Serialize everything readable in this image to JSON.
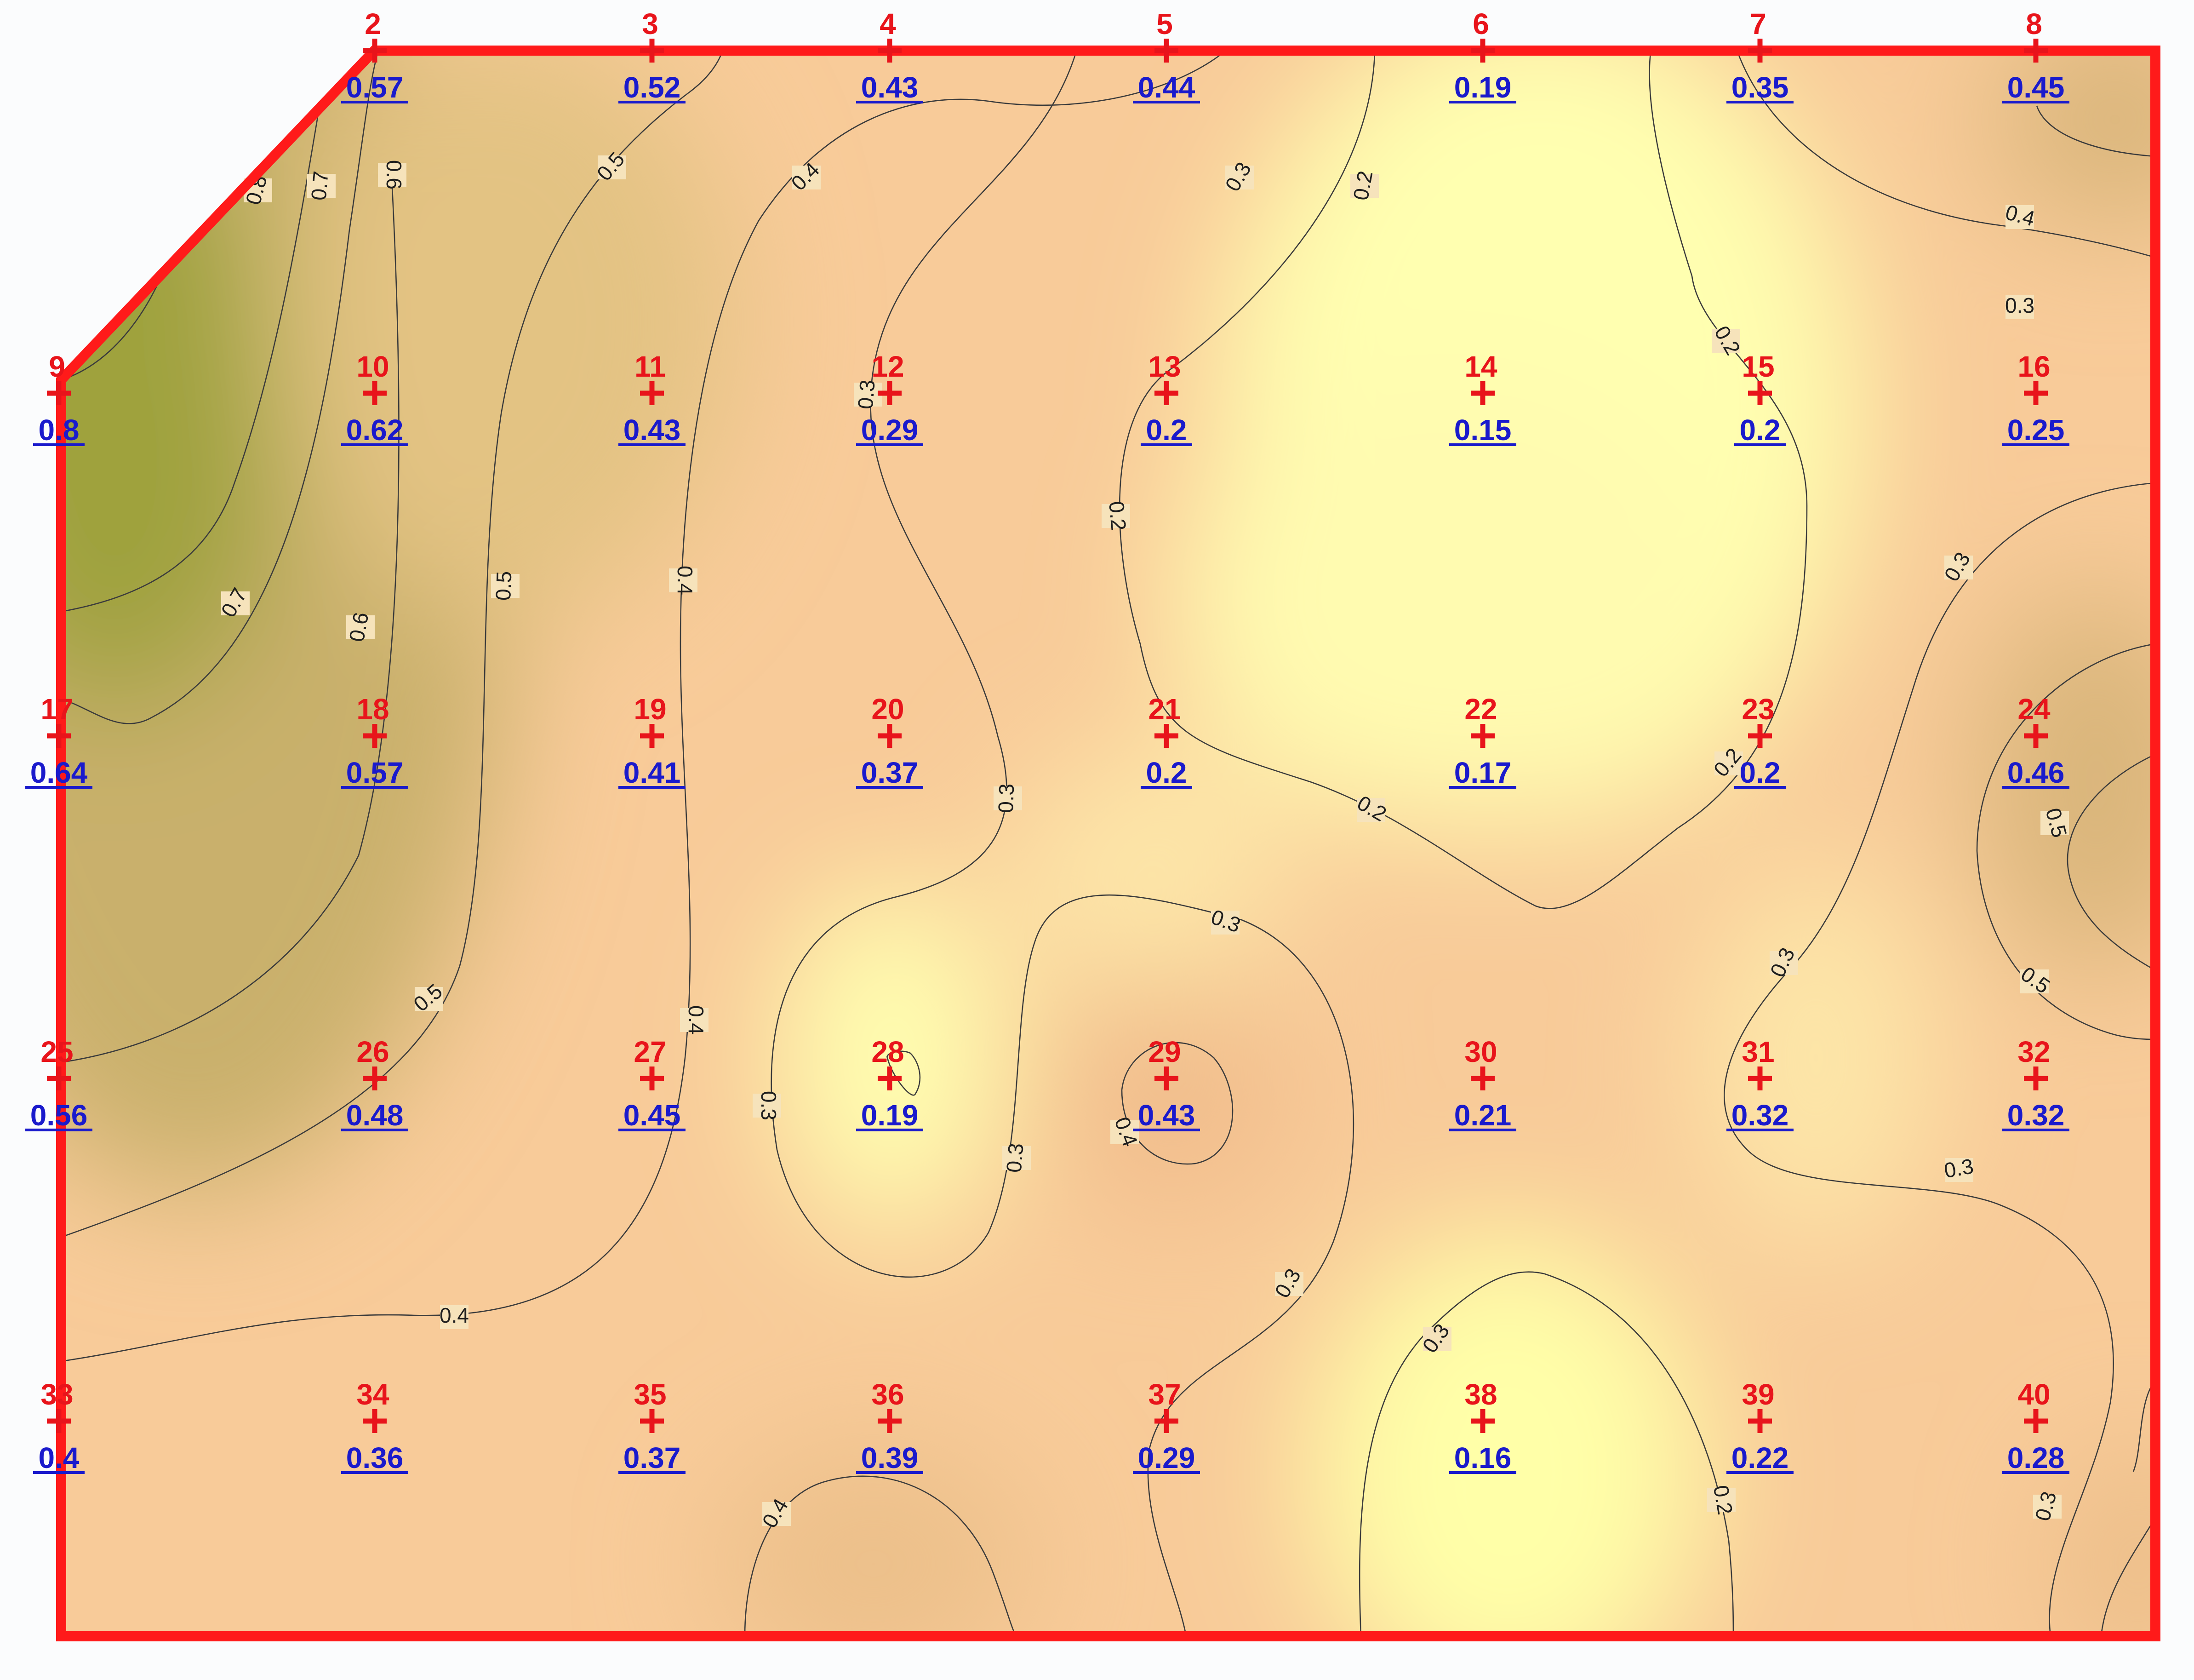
{
  "colors": {
    "boundary": "#ff1a1a",
    "point_id": "#e8141b",
    "point_value": "#1a1acc",
    "low": "#ffffa8",
    "mid": "#f7c894",
    "high": "#8f9a2e"
  },
  "points": [
    {
      "id": "2",
      "value": "0.57"
    },
    {
      "id": "3",
      "value": "0.52"
    },
    {
      "id": "4",
      "value": "0.43"
    },
    {
      "id": "5",
      "value": "0.44"
    },
    {
      "id": "6",
      "value": "0.19"
    },
    {
      "id": "7",
      "value": "0.35"
    },
    {
      "id": "8",
      "value": "0.45"
    },
    {
      "id": "9",
      "value": "0.8"
    },
    {
      "id": "10",
      "value": "0.62"
    },
    {
      "id": "11",
      "value": "0.43"
    },
    {
      "id": "12",
      "value": "0.29"
    },
    {
      "id": "13",
      "value": "0.2"
    },
    {
      "id": "14",
      "value": "0.15"
    },
    {
      "id": "15",
      "value": "0.2"
    },
    {
      "id": "16",
      "value": "0.25"
    },
    {
      "id": "17",
      "value": "0.64"
    },
    {
      "id": "18",
      "value": "0.57"
    },
    {
      "id": "19",
      "value": "0.41"
    },
    {
      "id": "20",
      "value": "0.37"
    },
    {
      "id": "21",
      "value": "0.2"
    },
    {
      "id": "22",
      "value": "0.17"
    },
    {
      "id": "23",
      "value": "0.2"
    },
    {
      "id": "24",
      "value": "0.46"
    },
    {
      "id": "25",
      "value": "0.56"
    },
    {
      "id": "26",
      "value": "0.48"
    },
    {
      "id": "27",
      "value": "0.45"
    },
    {
      "id": "28",
      "value": "0.19"
    },
    {
      "id": "29",
      "value": "0.43"
    },
    {
      "id": "30",
      "value": "0.21"
    },
    {
      "id": "31",
      "value": "0.32"
    },
    {
      "id": "32",
      "value": "0.32"
    },
    {
      "id": "33",
      "value": "0.4"
    },
    {
      "id": "34",
      "value": "0.36"
    },
    {
      "id": "35",
      "value": "0.37"
    },
    {
      "id": "36",
      "value": "0.39"
    },
    {
      "id": "37",
      "value": "0.29"
    },
    {
      "id": "38",
      "value": "0.16"
    },
    {
      "id": "39",
      "value": "0.22"
    },
    {
      "id": "40",
      "value": "0.28"
    }
  ],
  "contour_labels": [
    "0.8",
    "0.7",
    "0.6",
    "0.5",
    "0.4",
    "0.3",
    "0.2",
    "0.4",
    "0.3",
    "0.3",
    "0.2",
    "0.2",
    "0.5",
    "0.4",
    "0.3",
    "0.7",
    "0.6",
    "0.3",
    "0.5",
    "0.3",
    "0.2",
    "0.2",
    "0.5",
    "0.3",
    "0.5",
    "0.4",
    "0.3",
    "0.3",
    "0.4",
    "0.3",
    "0.4",
    "0.3",
    "0.3",
    "0.4",
    "0.3",
    "0.2",
    "0.2",
    "0.4",
    "0.3"
  ]
}
